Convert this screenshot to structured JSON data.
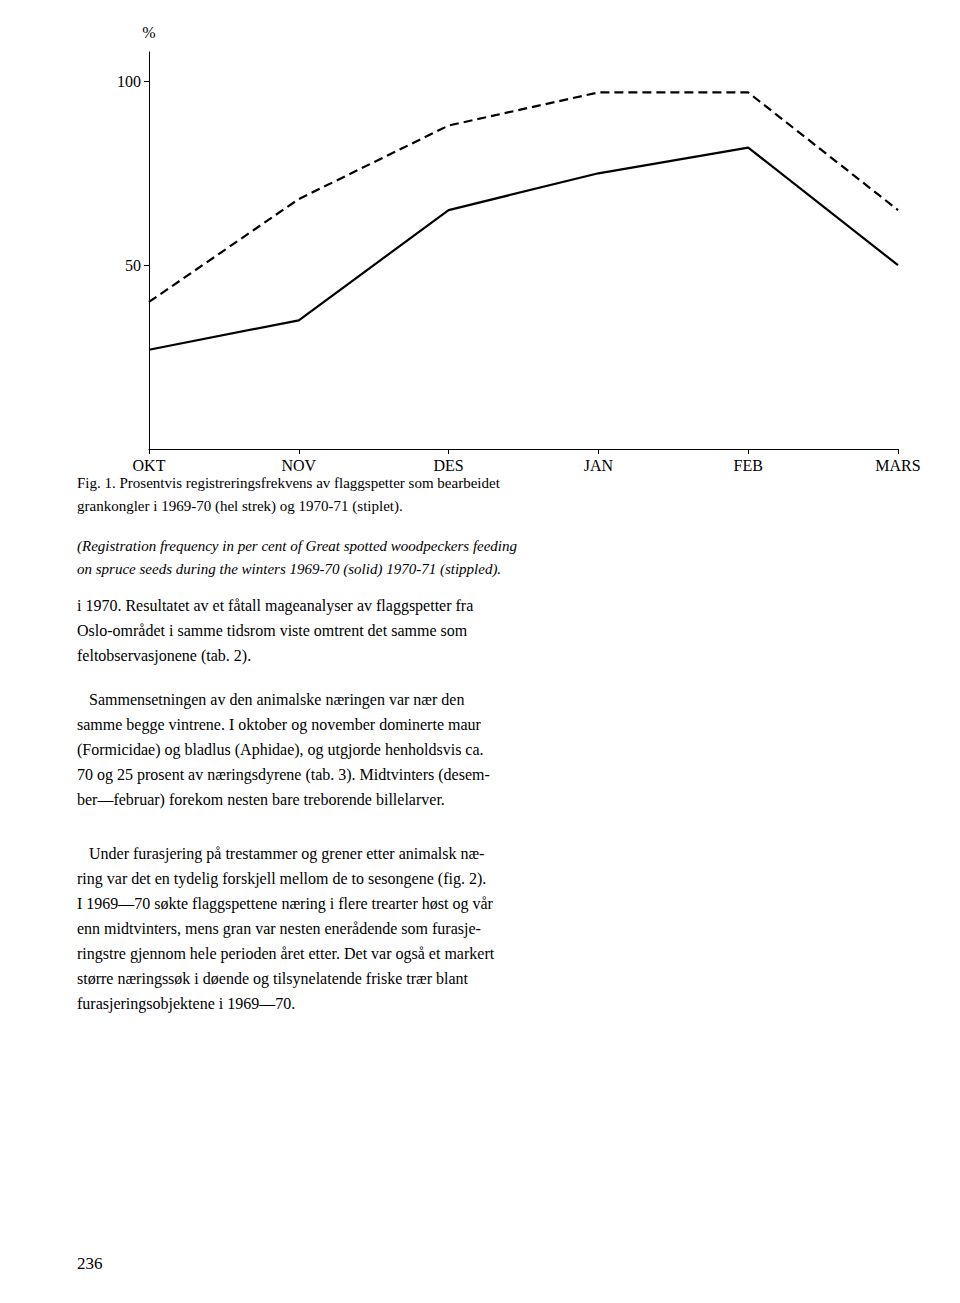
{
  "chart_data": {
    "type": "line",
    "categories": [
      "OKT",
      "NOV",
      "DES",
      "JAN",
      "FEB",
      "MARS"
    ],
    "series": [
      {
        "values": [
          27,
          35,
          65,
          75,
          82,
          50
        ],
        "color": "#000000",
        "line_style": "solid"
      },
      {
        "values": [
          40,
          68,
          88,
          97,
          97,
          65
        ],
        "color": "#000000",
        "line_style": "dashed"
      }
    ],
    "y_label": "%",
    "ylim": [
      0,
      108
    ],
    "yticks": [
      50,
      100
    ],
    "grid": false,
    "caption": "Fig. 1. Prosentvis registreringsfrekvens av flaggspetter som bearbeidet\ngrankongler i 1969-70 (hel strek) og 1970-71 (stiplet).",
    "caption_translation": "(Registration frequency in per cent of Great spotted woodpeckers feeding\non spruce seeds during the winters 1969-70 (solid) 1970-71 (stippled).",
    "body": [
      "i 1970. Resultatet av et fåtall mageanalyser av flaggspetter fra\nOslo-området i samme tidsrom viste omtrent det samme som\nfeltobservasjonene (tab. 2).",
      "   Sammensetningen av den animalske næringen var nær den\nsamme begge vintrene. I oktober og november dominerte maur\n(Formicidae) og bladlus (Aphidae), og utgjorde henholdsvis ca.\n70 og 25 prosent av næringsdyrene (tab. 3). Midtvinters (desem-\nber—februar) forekom nesten bare treborende billelarver.",
      "   Under furasjering på trestammer og grener etter animalsk næ-\nring var det en tydelig forskjell mellom de to sesongene (fig. 2).\nI 1969—70 søkte flaggspettene næring i flere trearter høst og vår\nenn midtvinters, mens gran var nesten enerådende som furasje-\nringstre gjennom hele perioden året etter. Det var også et markert\nstørre næringssøk i døende og tilsynelatende friske trær blant\nfurasjeringsobjektene i 1969—70."
    ],
    "page_number": "236"
  }
}
